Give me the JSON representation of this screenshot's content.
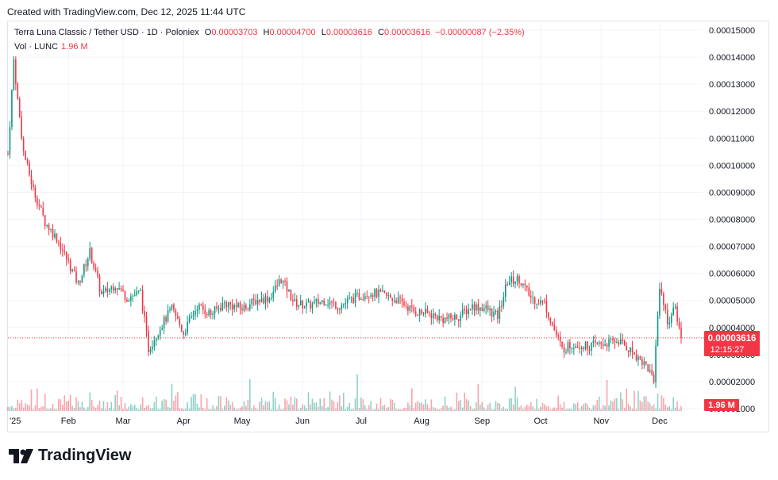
{
  "header": {
    "created": "Created with TradingView.com, Dec 12, 2025 11:44 UTC"
  },
  "legend": {
    "symbol": "Terra Luna Classic / Tether USD · 1D · Poloniex",
    "o_label": "O",
    "o_value": "0.00003703",
    "h_label": "H",
    "h_value": "0.00004700",
    "l_label": "L",
    "l_value": "0.00003616",
    "c_label": "C",
    "c_value": "0.00003616",
    "change": "−0.00000087 (−2.35%)",
    "vol_label": "Vol · LUNC",
    "vol_value": "1.96 M"
  },
  "price_badge": {
    "price": "0.00003616",
    "countdown": "12:15:27"
  },
  "volume_badge": "1.96 M",
  "brand": {
    "name": "TradingView"
  },
  "colors": {
    "up": "#089981",
    "down": "#f23645",
    "text": "#131722",
    "grid": "#f0f3fa"
  },
  "chart_data": {
    "type": "candlestick",
    "ylim": [
      1e-05,
      0.00015
    ],
    "y_ticks": [
      "0.00015000",
      "0.00014000",
      "0.00013000",
      "0.00012000",
      "0.00011000",
      "0.00010000",
      "0.00009000",
      "0.00008000",
      "0.00007000",
      "0.00006000",
      "0.00005000",
      "0.00004000",
      "0.00003000",
      "0.00002000",
      "0.00001000"
    ],
    "x_labels": [
      "2025",
      "Feb",
      "Mar",
      "Apr",
      "May",
      "Jun",
      "Jul",
      "Aug",
      "Sep",
      "Oct",
      "Nov",
      "Dec"
    ],
    "x_date_range": [
      "2025-01-01",
      "2025-12-12"
    ],
    "last_price": 3.616e-05,
    "price_series": [
      {
        "date": "2025-01-01",
        "close": 0.000104
      },
      {
        "date": "2025-01-04",
        "close": 0.000139
      },
      {
        "date": "2025-01-06",
        "close": 0.000124
      },
      {
        "date": "2025-01-09",
        "close": 0.000105
      },
      {
        "date": "2025-01-14",
        "close": 9.1e-05
      },
      {
        "date": "2025-01-20",
        "close": 7.9e-05
      },
      {
        "date": "2025-01-26",
        "close": 7.3e-05
      },
      {
        "date": "2025-02-01",
        "close": 6.4e-05
      },
      {
        "date": "2025-02-06",
        "close": 5.6e-05
      },
      {
        "date": "2025-02-12",
        "close": 6.8e-05
      },
      {
        "date": "2025-02-18",
        "close": 5.2e-05
      },
      {
        "date": "2025-02-25",
        "close": 5.6e-05
      },
      {
        "date": "2025-03-03",
        "close": 5.1e-05
      },
      {
        "date": "2025-03-10",
        "close": 5.3e-05
      },
      {
        "date": "2025-03-14",
        "close": 3.2e-05
      },
      {
        "date": "2025-03-20",
        "close": 4e-05
      },
      {
        "date": "2025-03-26",
        "close": 4.7e-05
      },
      {
        "date": "2025-04-01",
        "close": 3.8e-05
      },
      {
        "date": "2025-04-08",
        "close": 4.8e-05
      },
      {
        "date": "2025-04-15",
        "close": 4.5e-05
      },
      {
        "date": "2025-04-22",
        "close": 4.9e-05
      },
      {
        "date": "2025-05-01",
        "close": 4.7e-05
      },
      {
        "date": "2025-05-08",
        "close": 5e-05
      },
      {
        "date": "2025-05-15",
        "close": 5.1e-05
      },
      {
        "date": "2025-05-21",
        "close": 5.8e-05
      },
      {
        "date": "2025-05-28",
        "close": 4.9e-05
      },
      {
        "date": "2025-06-04",
        "close": 4.8e-05
      },
      {
        "date": "2025-06-12",
        "close": 5e-05
      },
      {
        "date": "2025-06-20",
        "close": 4.8e-05
      },
      {
        "date": "2025-06-28",
        "close": 5.1e-05
      },
      {
        "date": "2025-07-05",
        "close": 5.3e-05
      },
      {
        "date": "2025-07-12",
        "close": 5.2e-05
      },
      {
        "date": "2025-07-20",
        "close": 5e-05
      },
      {
        "date": "2025-07-28",
        "close": 4.6e-05
      },
      {
        "date": "2025-08-05",
        "close": 4.5e-05
      },
      {
        "date": "2025-08-12",
        "close": 4.3e-05
      },
      {
        "date": "2025-08-20",
        "close": 4.4e-05
      },
      {
        "date": "2025-08-27",
        "close": 4.8e-05
      },
      {
        "date": "2025-09-03",
        "close": 4.7e-05
      },
      {
        "date": "2025-09-09",
        "close": 4.4e-05
      },
      {
        "date": "2025-09-14",
        "close": 5.7e-05
      },
      {
        "date": "2025-09-20",
        "close": 5.8e-05
      },
      {
        "date": "2025-09-26",
        "close": 5.1e-05
      },
      {
        "date": "2025-10-03",
        "close": 4.9e-05
      },
      {
        "date": "2025-10-08",
        "close": 3.9e-05
      },
      {
        "date": "2025-10-12",
        "close": 3.2e-05
      },
      {
        "date": "2025-10-18",
        "close": 3.4e-05
      },
      {
        "date": "2025-10-25",
        "close": 3.3e-05
      },
      {
        "date": "2025-11-02",
        "close": 3.4e-05
      },
      {
        "date": "2025-11-10",
        "close": 3.5e-05
      },
      {
        "date": "2025-11-17",
        "close": 3.1e-05
      },
      {
        "date": "2025-11-24",
        "close": 2.6e-05
      },
      {
        "date": "2025-11-28",
        "close": 2.1e-05
      },
      {
        "date": "2025-12-01",
        "close": 5.6e-05
      },
      {
        "date": "2025-12-05",
        "close": 4.2e-05
      },
      {
        "date": "2025-12-09",
        "close": 4.7e-05
      },
      {
        "date": "2025-12-12",
        "close": 3.616e-05
      }
    ],
    "volume_max_label": "1.96 M"
  }
}
